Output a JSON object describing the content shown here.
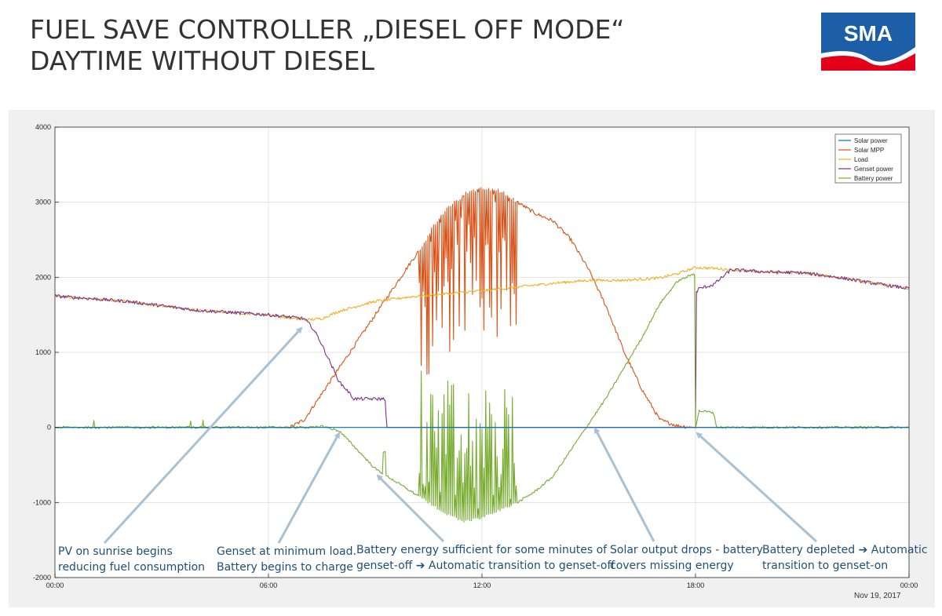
{
  "header": {
    "title_line1": "FUEL SAVE CONTROLLER „DIESEL OFF MODE“",
    "title_line2": "DAYTIME WITHOUT DIESEL",
    "logo_text": "SMA"
  },
  "colors": {
    "solar_power": "#0072bd",
    "solar_mpp": "#d95319",
    "load": "#edb120",
    "genset_power": "#7e2f8e",
    "battery_power": "#77ac30",
    "annotation_text": "#1f4e79",
    "arrow": "#a9c1d3",
    "logo_blue": "#1c5ea8",
    "logo_red": "#e2001a"
  },
  "chart_data": {
    "type": "line",
    "x_unit": "hours",
    "xlim": [
      0,
      24
    ],
    "ylim": [
      -2000,
      4000
    ],
    "x_ticks": [
      "00:00",
      "06:00",
      "12:00",
      "18:00",
      "00:00"
    ],
    "x_tick_values": [
      0,
      6,
      12,
      18,
      24
    ],
    "y_ticks": [
      4000,
      3000,
      2000,
      1000,
      0,
      -1000,
      -2000
    ],
    "date_label": "Nov 19, 2017",
    "grid": true,
    "legend_position": "top-right",
    "series": [
      {
        "name": "Solar power",
        "key": "solar_power",
        "x": [
          0,
          24
        ],
        "y": [
          0,
          0
        ]
      },
      {
        "name": "Solar MPP",
        "key": "solar_mpp",
        "x": [
          0,
          6.6,
          7.0,
          7.5,
          8.0,
          8.5,
          9.0,
          9.5,
          10.0,
          10.3,
          10.6,
          11.0,
          11.5,
          12.0,
          12.5,
          13.0,
          13.5,
          14.0,
          14.5,
          15.0,
          15.5,
          16.0,
          16.5,
          17.0,
          17.5,
          18.0,
          24
        ],
        "y": [
          0,
          0,
          100,
          450,
          800,
          1150,
          1500,
          1850,
          2200,
          2400,
          2650,
          2900,
          3100,
          3200,
          3150,
          3000,
          2850,
          2750,
          2500,
          2100,
          1600,
          1000,
          500,
          100,
          20,
          0,
          0
        ]
      },
      {
        "name": "Load",
        "key": "load",
        "x": [
          0,
          2,
          4,
          6,
          7,
          7.5,
          8,
          9,
          10,
          11,
          12,
          13,
          14,
          15,
          16,
          17,
          17.5,
          18,
          18.5,
          19,
          20,
          21,
          22,
          23,
          24
        ],
        "y": [
          1750,
          1680,
          1560,
          1500,
          1430,
          1450,
          1550,
          1680,
          1740,
          1780,
          1820,
          1870,
          1920,
          1960,
          1960,
          1990,
          2050,
          2130,
          2120,
          2100,
          2070,
          2060,
          2000,
          1920,
          1850
        ]
      },
      {
        "name": "Genset power",
        "key": "genset_power",
        "x": [
          0,
          2,
          4,
          6,
          7.0,
          7.2,
          7.4,
          7.6,
          7.8,
          8.0,
          8.2,
          8.4,
          9.0,
          9.3,
          9.31,
          18.0,
          18.02,
          18.1,
          18.5,
          19,
          20,
          21,
          22,
          23,
          24
        ],
        "y": [
          1750,
          1680,
          1560,
          1500,
          1450,
          1350,
          1200,
          1000,
          800,
          600,
          500,
          380,
          380,
          380,
          0,
          0,
          1800,
          1850,
          1900,
          2100,
          2070,
          2060,
          2000,
          1920,
          1850
        ]
      },
      {
        "name": "Battery power",
        "key": "battery_power",
        "x": [
          0,
          7.3,
          7.5,
          8.0,
          8.5,
          9.0,
          9.5,
          10.0,
          10.5,
          11.0,
          11.5,
          12.0,
          12.5,
          13.0,
          13.5,
          14.0,
          14.5,
          15.0,
          15.5,
          16.0,
          16.5,
          17.0,
          17.5,
          17.98,
          18.0,
          18.1,
          18.5,
          18.6,
          24
        ],
        "y": [
          0,
          0,
          20,
          -50,
          -300,
          -550,
          -700,
          -850,
          -1000,
          -1150,
          -1250,
          -1200,
          -1100,
          -1000,
          -850,
          -650,
          -300,
          50,
          400,
          800,
          1200,
          1650,
          1950,
          2050,
          0,
          220,
          200,
          0,
          0
        ]
      }
    ]
  },
  "annotations": [
    {
      "text": "PV on sunrise begins\nreducing fuel consumption"
    },
    {
      "text": "Genset at minimum load.\nBattery begins to charge"
    },
    {
      "text": "Battery energy sufficient for some minutes of\ngenset-off ➔ Automatic transition to genset-off"
    },
    {
      "text": "Solar output drops - battery\ncovers missing energy"
    },
    {
      "text": "Battery depleted ➔ Automatic\ntransition to genset-on"
    }
  ]
}
